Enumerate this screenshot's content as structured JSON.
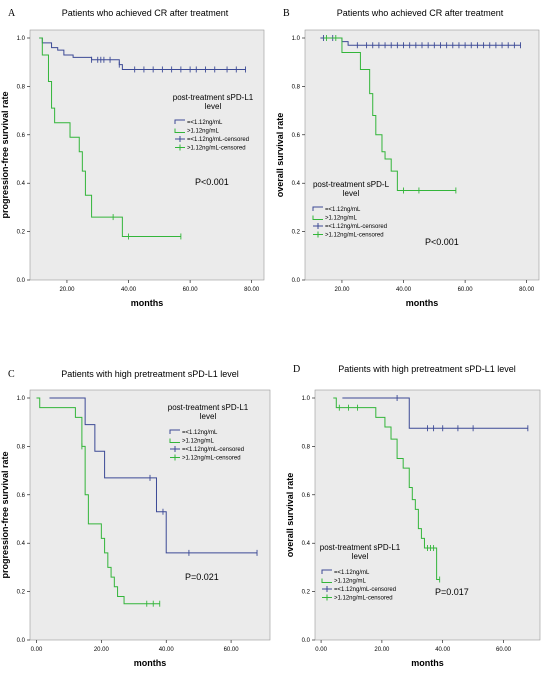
{
  "colors": {
    "low": "#3c4a96",
    "high": "#33b53a",
    "plot_bg": "#ebebeb",
    "axis": "#000000"
  },
  "chart_data": [
    {
      "panel": "A",
      "type": "line",
      "step": true,
      "title": "Patients who achieved CR after treatment",
      "xlabel": "months",
      "ylabel": "progression-free survival rate",
      "xlim": [
        8,
        84
      ],
      "ylim": [
        0,
        1.0
      ],
      "xticks": [
        "20.00",
        "40.00",
        "60.00",
        "80.00"
      ],
      "xtick_values": [
        20,
        40,
        60,
        80
      ],
      "yticks": [
        "0.0",
        "0.2",
        "0.4",
        "0.6",
        "0.8",
        "1.0"
      ],
      "ytick_values": [
        0,
        0.2,
        0.4,
        0.6,
        0.8,
        1.0
      ],
      "legend_title": "post-treatment sPD-L1 level",
      "legend": [
        "=<1.12ng/mL",
        ">1.12ng/mL",
        "=<1.12ng/mL-censored",
        ">1.12ng/mL-censored"
      ],
      "p_value": "P<0.001",
      "series": [
        {
          "group": "low",
          "x": [
            12,
            15,
            17,
            19,
            22,
            28,
            37,
            38
          ],
          "y": [
            0.98,
            0.96,
            0.95,
            0.93,
            0.92,
            0.91,
            0.89,
            0.87
          ],
          "censored_x": [
            28,
            30,
            31,
            32,
            34,
            37,
            42,
            45,
            48,
            51,
            54,
            57,
            60,
            62,
            65,
            68,
            72,
            75,
            78
          ]
        },
        {
          "group": "high",
          "x": [
            12,
            14,
            15,
            16,
            21,
            24,
            25,
            26,
            28,
            35,
            38
          ],
          "y": [
            0.93,
            0.82,
            0.71,
            0.65,
            0.59,
            0.53,
            0.45,
            0.35,
            0.26,
            0.26,
            0.18
          ],
          "censored_x": [
            35,
            40,
            57
          ]
        }
      ]
    },
    {
      "panel": "B",
      "type": "line",
      "step": true,
      "title": "Patients who achieved CR after treatment",
      "xlabel": "months",
      "ylabel": "overall survival rate",
      "xlim": [
        8,
        84
      ],
      "ylim": [
        0,
        1.0
      ],
      "xticks": [
        "20.00",
        "40.00",
        "60.00",
        "80.00"
      ],
      "xtick_values": [
        20,
        40,
        60,
        80
      ],
      "yticks": [
        "0.0",
        "0.2",
        "0.4",
        "0.6",
        "0.8",
        "1.0"
      ],
      "ytick_values": [
        0,
        0.2,
        0.4,
        0.6,
        0.8,
        1.0
      ],
      "legend_title": "post-treatment sPD-L level",
      "legend": [
        "=<1.12ng/mL",
        ">1.12ng/mL",
        "=<1.12ng/mL-censored",
        ">1.12ng/mL-censored"
      ],
      "p_value": "P<0.001",
      "series": [
        {
          "group": "low",
          "x": [
            16,
            20,
            22
          ],
          "y": [
            1.0,
            0.985,
            0.97
          ],
          "censored_x": [
            14,
            17,
            25,
            28,
            30,
            32,
            34,
            36,
            38,
            40,
            42,
            44,
            46,
            48,
            50,
            52,
            54,
            56,
            58,
            60,
            62,
            64,
            66,
            68,
            70,
            72,
            74,
            76,
            78
          ]
        },
        {
          "group": "high",
          "x": [
            15,
            20,
            26,
            29,
            30,
            31,
            33,
            34,
            36,
            38
          ],
          "y": [
            1.0,
            0.94,
            0.87,
            0.77,
            0.68,
            0.6,
            0.53,
            0.5,
            0.45,
            0.37
          ],
          "censored_x": [
            15,
            18,
            40,
            45,
            57
          ]
        }
      ]
    },
    {
      "panel": "C",
      "type": "line",
      "step": true,
      "title": "Patients with high pretreatment sPD-L1 level",
      "xlabel": "months",
      "ylabel": "progression-free survival rate",
      "xlim": [
        -2,
        72
      ],
      "ylim": [
        0,
        1.0
      ],
      "xticks": [
        "0.00",
        "20.00",
        "40.00",
        "60.00"
      ],
      "xtick_values": [
        0,
        20,
        40,
        60
      ],
      "yticks": [
        "0.0",
        "0.2",
        "0.4",
        "0.6",
        "0.8",
        "1.0"
      ],
      "ytick_values": [
        0,
        0.2,
        0.4,
        0.6,
        0.8,
        1.0
      ],
      "legend_title": "post-treatment sPD-L1 level",
      "legend": [
        "=<1.12ng/mL",
        ">1.12ng/mL",
        "=<1.12ng/mL-censored",
        ">1.12ng/mL-censored"
      ],
      "p_value": "P=0.021",
      "series": [
        {
          "group": "low",
          "x": [
            5,
            15,
            18,
            21,
            37,
            40
          ],
          "y": [
            1.0,
            0.89,
            0.78,
            0.67,
            0.53,
            0.36
          ],
          "censored_x": [
            35,
            39,
            47,
            68
          ]
        },
        {
          "group": "high",
          "x": [
            1,
            12,
            14,
            15,
            16,
            17,
            20,
            21,
            22,
            23,
            24,
            25,
            27
          ],
          "y": [
            0.96,
            0.92,
            0.8,
            0.6,
            0.48,
            0.48,
            0.42,
            0.36,
            0.3,
            0.26,
            0.22,
            0.18,
            0.15
          ],
          "censored_x": [
            14,
            34,
            36,
            38
          ]
        }
      ]
    },
    {
      "panel": "D",
      "type": "line",
      "step": true,
      "title": "Patients with high pretreatment sPD-L1 level",
      "xlabel": "months",
      "ylabel": "overall survival rate",
      "xlim": [
        -2,
        72
      ],
      "ylim": [
        0,
        1.0
      ],
      "xticks": [
        "0.00",
        "20.00",
        "40.00",
        "60.00"
      ],
      "xtick_values": [
        0,
        20,
        40,
        60
      ],
      "yticks": [
        "0.0",
        "0.2",
        "0.4",
        "0.6",
        "0.8",
        "1.0"
      ],
      "ytick_values": [
        0,
        0.2,
        0.4,
        0.6,
        0.8,
        1.0
      ],
      "legend_title": "post-treatment sPD-L1 level",
      "legend": [
        "=<1.12ng/mL",
        ">1.12ng/mL",
        "=<1.12ng/mL-censored",
        ">1.12ng/mL-censored"
      ],
      "p_value": "P=0.017",
      "series": [
        {
          "group": "low",
          "x": [
            8,
            29
          ],
          "y": [
            1.0,
            0.875
          ],
          "censored_x": [
            25,
            35,
            37,
            40,
            45,
            50,
            68
          ]
        },
        {
          "group": "high",
          "x": [
            5,
            18,
            21,
            23,
            25,
            27,
            29,
            30,
            31,
            32,
            33,
            34,
            38
          ],
          "y": [
            0.96,
            0.92,
            0.88,
            0.83,
            0.75,
            0.71,
            0.63,
            0.58,
            0.54,
            0.46,
            0.42,
            0.38,
            0.25
          ],
          "censored_x": [
            6,
            9,
            12,
            35,
            36,
            37,
            39
          ]
        }
      ]
    }
  ]
}
